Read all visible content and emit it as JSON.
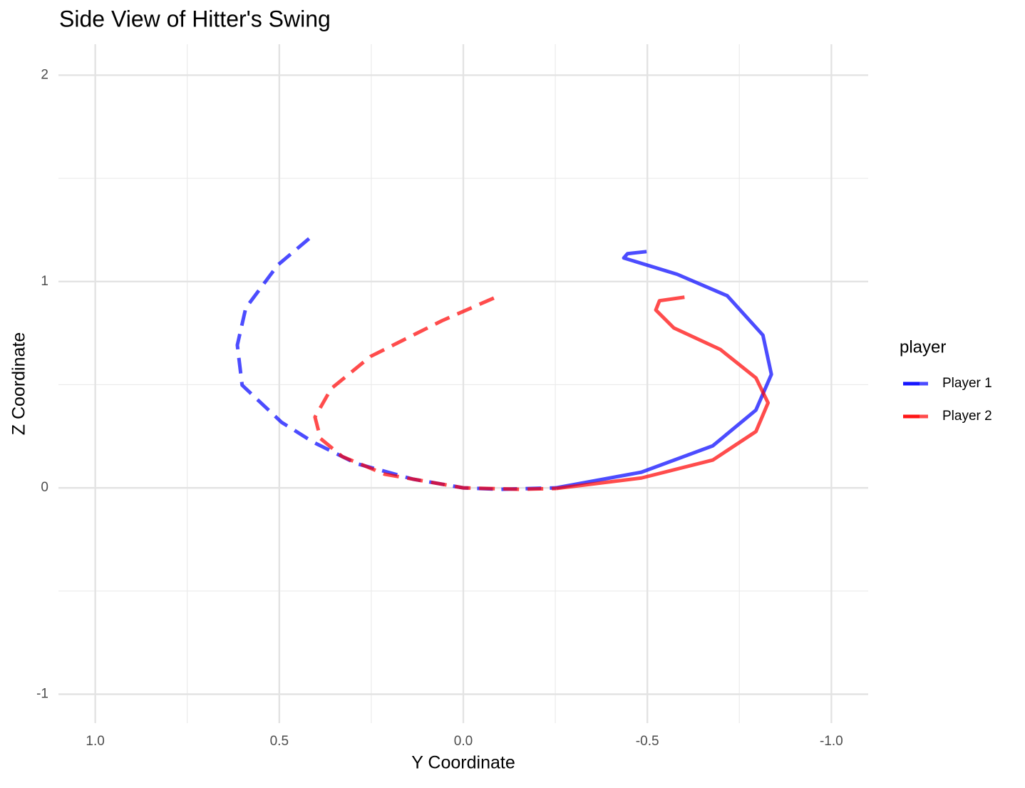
{
  "chart_data": {
    "type": "line",
    "title": "Side View of Hitter's Swing",
    "x_label": "Y Coordinate",
    "y_label": "Z Coordinate",
    "legend_title": "player",
    "x_reversed": true,
    "grid": true,
    "legend_position": "right",
    "xlim": [
      1.1,
      -1.1
    ],
    "ylim": [
      -1.14,
      2.15
    ],
    "xticks": [
      {
        "value": 1,
        "label": "1.0"
      },
      0.5,
      {
        "value": 0,
        "label": "0.0"
      },
      -0.5,
      {
        "value": -1,
        "label": "-1.0"
      }
    ],
    "yticks": [
      -1,
      0,
      1,
      2
    ],
    "xminor": [
      0.75,
      0.25,
      -0.25,
      -0.75
    ],
    "yminor": [
      -0.5,
      0.5,
      1.5
    ],
    "series": [
      {
        "name": "Player 1",
        "color": "#0000ff",
        "segments": [
          {
            "linetype": "dashed",
            "x": [
              0.419,
              0.504,
              0.591,
              0.614,
              0.601,
              0.494,
              0.407,
              0.291,
              0.136,
              0,
              -0.097,
              -0.252
            ],
            "values": [
              1.208,
              1.08,
              0.872,
              0.692,
              0.498,
              0.318,
              0.221,
              0.118,
              0.042,
              0,
              -0.007,
              0
            ]
          },
          {
            "linetype": "solid",
            "x": [
              -0.252,
              -0.484,
              -0.678,
              -0.795,
              -0.837,
              -0.814,
              -0.717,
              -0.581,
              -0.436,
              -0.446,
              -0.498
            ],
            "values": [
              0,
              0.076,
              0.204,
              0.377,
              0.55,
              0.74,
              0.931,
              1.035,
              1.114,
              1.135,
              1.145
            ]
          }
        ]
      },
      {
        "name": "Player 2",
        "color": "#ff0000",
        "segments": [
          {
            "linetype": "dashed",
            "x": [
              -0.083,
              0.058,
              0.252,
              0.359,
              0.403,
              0.388,
              0.329,
              0.213,
              0,
              -0.155,
              -0.252
            ],
            "values": [
              0.92,
              0.81,
              0.637,
              0.481,
              0.343,
              0.239,
              0.152,
              0.066,
              0,
              -0.007,
              -0.003
            ]
          },
          {
            "linetype": "solid",
            "x": [
              -0.252,
              -0.484,
              -0.678,
              -0.795,
              -0.828,
              -0.795,
              -0.698,
              -0.572,
              -0.523,
              -0.533,
              -0.601
            ],
            "values": [
              -0.003,
              0.048,
              0.135,
              0.273,
              0.412,
              0.533,
              0.671,
              0.775,
              0.862,
              0.907,
              0.924
            ]
          }
        ]
      }
    ]
  }
}
